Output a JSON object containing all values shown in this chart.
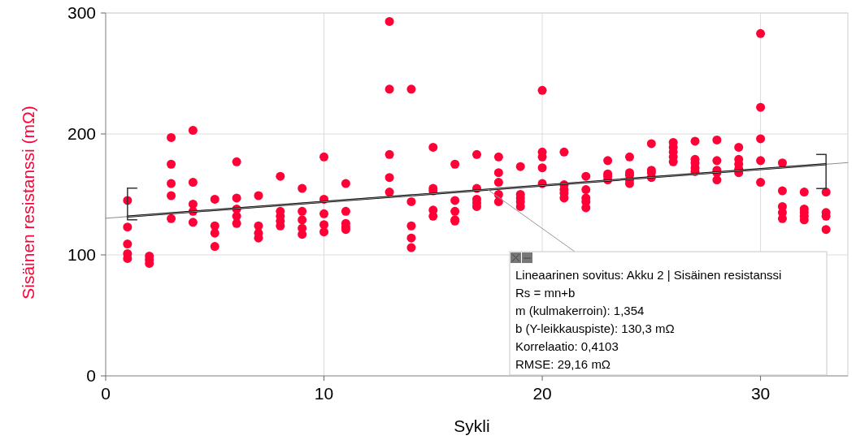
{
  "chart_data": {
    "type": "scatter",
    "xlabel": "Sykli",
    "ylabel": "Sisäinen resistanssi (mΩ)",
    "xlim": [
      0,
      34
    ],
    "xticks": [
      0,
      10,
      20,
      30
    ],
    "ylim": [
      0,
      300
    ],
    "yticks": [
      0,
      100,
      200,
      300
    ],
    "grid": true,
    "marker": "circle",
    "series": [
      {
        "type": "scatter",
        "color": "#ff0037",
        "x": [
          1,
          1,
          1,
          1,
          1,
          2,
          2,
          2,
          3,
          3,
          3,
          3,
          3,
          4,
          4,
          4,
          4,
          4,
          5,
          5,
          5,
          5,
          6,
          6,
          6,
          6,
          6,
          7,
          7,
          7,
          7,
          8,
          8,
          8,
          8,
          8,
          9,
          9,
          9,
          9,
          9,
          10,
          10,
          10,
          10,
          10,
          11,
          11,
          11,
          11,
          11,
          13,
          13,
          13,
          13,
          13,
          14,
          14,
          14,
          14,
          14,
          15,
          15,
          15,
          15,
          15,
          16,
          16,
          16,
          16,
          16,
          17,
          17,
          17,
          17,
          17,
          18,
          18,
          18,
          18,
          18,
          19,
          19,
          19,
          19,
          19,
          20,
          20,
          20,
          20,
          20,
          21,
          21,
          21,
          21,
          21,
          22,
          22,
          22,
          22,
          22,
          23,
          23,
          23,
          23,
          24,
          24,
          24,
          24,
          24,
          25,
          25,
          25,
          25,
          26,
          26,
          26,
          26,
          26,
          27,
          27,
          27,
          27,
          27,
          28,
          28,
          28,
          28,
          28,
          29,
          29,
          29,
          29,
          29,
          30,
          30,
          30,
          30,
          30,
          31,
          31,
          31,
          31,
          31,
          32,
          32,
          32,
          32,
          32,
          33,
          33,
          33,
          33
        ],
        "values": [
          145,
          123,
          109,
          101,
          97,
          99,
          96,
          93,
          197,
          175,
          159,
          149,
          130,
          203,
          160,
          142,
          136,
          127,
          146,
          124,
          118,
          107,
          177,
          147,
          138,
          132,
          126,
          149,
          124,
          118,
          114,
          165,
          136,
          132,
          128,
          124,
          155,
          136,
          129,
          122,
          117,
          181,
          146,
          134,
          125,
          119,
          159,
          136,
          126,
          123,
          121,
          293,
          237,
          183,
          164,
          152,
          237,
          144,
          124,
          114,
          106,
          189,
          155,
          153,
          137,
          132,
          175,
          145,
          136,
          129,
          128,
          183,
          155,
          146,
          143,
          140,
          181,
          168,
          160,
          150,
          144,
          173,
          150,
          147,
          144,
          140,
          236,
          185,
          181,
          172,
          159,
          185,
          158,
          154,
          151,
          147,
          165,
          154,
          147,
          144,
          139,
          178,
          167,
          165,
          162,
          181,
          168,
          166,
          162,
          159,
          192,
          170,
          168,
          164,
          193,
          189,
          185,
          181,
          177,
          194,
          179,
          176,
          172,
          169,
          195,
          178,
          170,
          168,
          162,
          189,
          179,
          175,
          171,
          168,
          283,
          222,
          196,
          178,
          160,
          176,
          153,
          140,
          135,
          130,
          152,
          138,
          135,
          132,
          129,
          152,
          135,
          132,
          121
        ]
      },
      {
        "type": "line",
        "marker": "none",
        "color": "#000000",
        "x": [
          1,
          33
        ],
        "values": [
          131.7,
          175.0
        ]
      },
      {
        "type": "line",
        "marker": "none",
        "color": "#8c8c8c",
        "x": [
          0,
          34
        ],
        "values": [
          130.3,
          176.3
        ]
      }
    ],
    "annotations": [
      "Lineaarinen sovitus: Akku 2 | Sisäinen resistanssi",
      "Rs = mn+b",
      "m (kulmakerroin): 1,354",
      "b (Y-leikkauspiste): 130,3 mΩ",
      "Korrelaatio: 0,4103",
      "RMSE: 29,16 mΩ"
    ]
  }
}
